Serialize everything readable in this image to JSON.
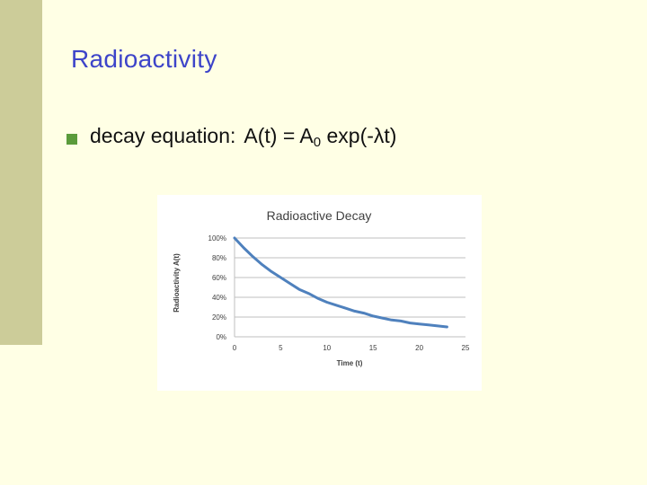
{
  "slide": {
    "title": "Radioactivity",
    "bullet": {
      "prefix": "decay equation:",
      "lhs": "A(t) = A",
      "subscript": "0",
      "rhs": " exp(-λt)"
    }
  },
  "colors": {
    "background": "#FFFFE5",
    "left_bar": "#CCCC99",
    "title": "#3D44C9",
    "bullet": "#5B9B3B",
    "series_line": "#4F81BD"
  },
  "chart_data": {
    "type": "line",
    "title": "Radioactive Decay",
    "xlabel": "Time (t)",
    "ylabel": "Radioactivity A(t)",
    "xlim": [
      0,
      25
    ],
    "ylim": [
      0,
      100
    ],
    "x_ticks": [
      0,
      5,
      10,
      15,
      20,
      25
    ],
    "y_ticks": [
      0,
      20,
      40,
      60,
      80,
      100
    ],
    "y_tick_labels": [
      "0%",
      "20%",
      "40%",
      "60%",
      "80%",
      "100%"
    ],
    "grid": true,
    "legend": "none",
    "series": [
      {
        "x": [
          0,
          1,
          2,
          3,
          4,
          5,
          6,
          7,
          8,
          9,
          10,
          11,
          12,
          13,
          14,
          15,
          16,
          17,
          18,
          19,
          20,
          21,
          22,
          23
        ],
        "values": [
          100,
          90,
          81,
          73,
          66,
          60,
          54,
          48,
          44,
          39,
          35,
          32,
          29,
          26,
          24,
          21,
          19,
          17,
          16,
          14,
          13,
          12,
          11,
          10
        ]
      }
    ]
  }
}
